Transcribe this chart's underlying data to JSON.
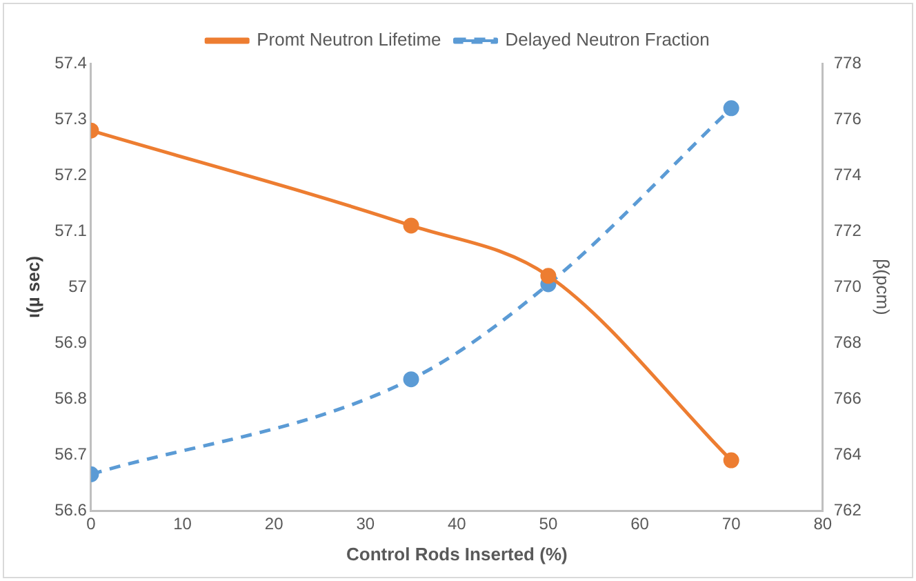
{
  "chart_data": {
    "type": "line",
    "xlabel": "Control Rods Inserted (%)",
    "ylabel": "ι(µ sec)",
    "y2label": "β(pcm)",
    "x": [
      0,
      35,
      50,
      70
    ],
    "series": [
      {
        "name": "Promt Neutron Lifetime",
        "color": "#ed7d31",
        "values": [
          57.28,
          57.11,
          57.02,
          56.69
        ],
        "line_style": "solid"
      },
      {
        "name": "Delayed Neutron Fraction",
        "color": "#5b9bd5",
        "values": [
          763.3,
          766.7,
          770.1,
          776.4
        ],
        "axis": "y2",
        "line_style": "dashed"
      }
    ],
    "xlim": [
      0,
      80
    ],
    "xticks": [
      0,
      10,
      20,
      30,
      40,
      50,
      60,
      70,
      80
    ],
    "ylim": [
      56.6,
      57.4
    ],
    "yticks": [
      56.6,
      56.7,
      56.8,
      56.9,
      57,
      57.1,
      57.2,
      57.3,
      57.4
    ],
    "y2lim": [
      762,
      778
    ],
    "y2ticks": [
      762,
      764,
      766,
      768,
      770,
      772,
      774,
      776,
      778
    ],
    "grid": false,
    "legend": "top",
    "marker": "circle"
  }
}
